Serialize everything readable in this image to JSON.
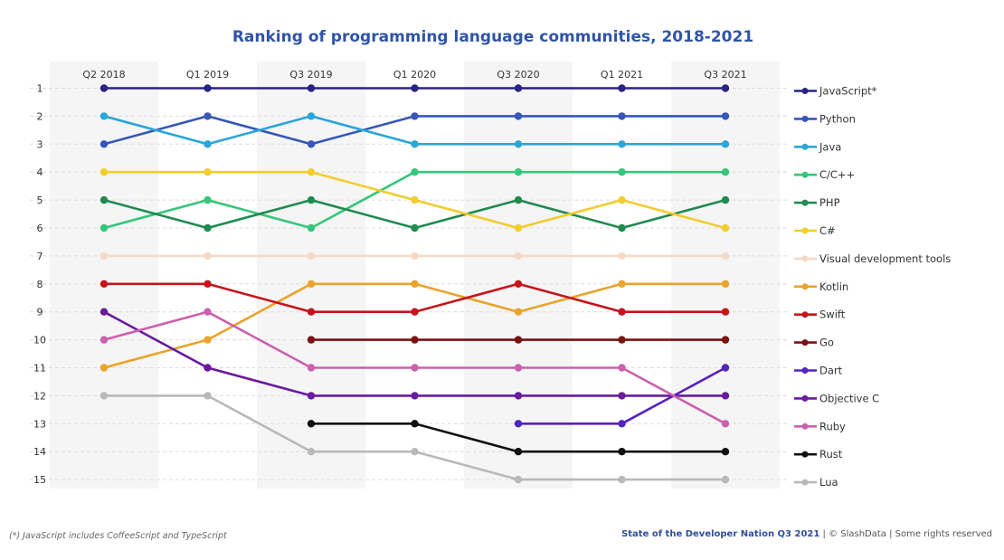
{
  "chart_data": {
    "type": "line",
    "subtype": "bump",
    "title": "Ranking of programming language communities, 2018-2021",
    "categories": [
      "Q2 2018",
      "Q1 2019",
      "Q3 2019",
      "Q1 2020",
      "Q3 2020",
      "Q1 2021",
      "Q3 2021"
    ],
    "y_ticks": [
      1,
      2,
      3,
      4,
      5,
      6,
      7,
      8,
      9,
      10,
      11,
      12,
      13,
      14,
      15
    ],
    "ylim": [
      1,
      15
    ],
    "y_inverted": true,
    "grid": "horizontal dashed",
    "legend_position": "right",
    "series": [
      {
        "name": "JavaScript*",
        "color": "#2b2384",
        "values": [
          1,
          1,
          1,
          1,
          1,
          1,
          1
        ]
      },
      {
        "name": "Python",
        "color": "#3557b7",
        "values": [
          3,
          2,
          3,
          2,
          2,
          2,
          2
        ]
      },
      {
        "name": "Java",
        "color": "#2aa6d8",
        "values": [
          2,
          3,
          2,
          3,
          3,
          3,
          3
        ]
      },
      {
        "name": "C/C++",
        "color": "#36c67b",
        "values": [
          6,
          5,
          6,
          4,
          4,
          4,
          4
        ]
      },
      {
        "name": "PHP",
        "color": "#1f8b50",
        "values": [
          5,
          6,
          5,
          6,
          5,
          6,
          5
        ]
      },
      {
        "name": "C#",
        "color": "#f1cd2e",
        "values": [
          4,
          4,
          4,
          5,
          6,
          5,
          6
        ]
      },
      {
        "name": "Visual development tools",
        "color": "#f4dac6",
        "values": [
          7,
          7,
          7,
          7,
          7,
          7,
          7
        ]
      },
      {
        "name": "Kotlin",
        "color": "#eba32b",
        "values": [
          11,
          10,
          8,
          8,
          9,
          8,
          8
        ]
      },
      {
        "name": "Swift",
        "color": "#c6141c",
        "values": [
          8,
          8,
          9,
          9,
          8,
          9,
          9
        ]
      },
      {
        "name": "Go",
        "color": "#7a1212",
        "values": [
          null,
          null,
          10,
          10,
          10,
          10,
          10
        ]
      },
      {
        "name": "Dart",
        "color": "#5622c2",
        "values": [
          null,
          null,
          null,
          null,
          13,
          13,
          11
        ]
      },
      {
        "name": "Objective C",
        "color": "#6a1a9e",
        "values": [
          9,
          11,
          12,
          12,
          12,
          12,
          12
        ]
      },
      {
        "name": "Ruby",
        "color": "#cc60ae",
        "values": [
          10,
          9,
          11,
          11,
          11,
          11,
          13
        ]
      },
      {
        "name": "Rust",
        "color": "#111111",
        "values": [
          null,
          null,
          13,
          13,
          14,
          14,
          14
        ]
      },
      {
        "name": "Lua",
        "color": "#b9b9b9",
        "values": [
          12,
          12,
          14,
          14,
          15,
          15,
          15
        ]
      }
    ]
  },
  "footnote": "(*) JavaScript includes CoffeeScript and TypeScript",
  "footer": {
    "source_bold": "State of the Developer Nation Q3 2021",
    "source_rest": " | © SlashData | Some rights reserved"
  },
  "colors": {
    "title": "#2f55a8",
    "band": "#f5f5f5"
  }
}
